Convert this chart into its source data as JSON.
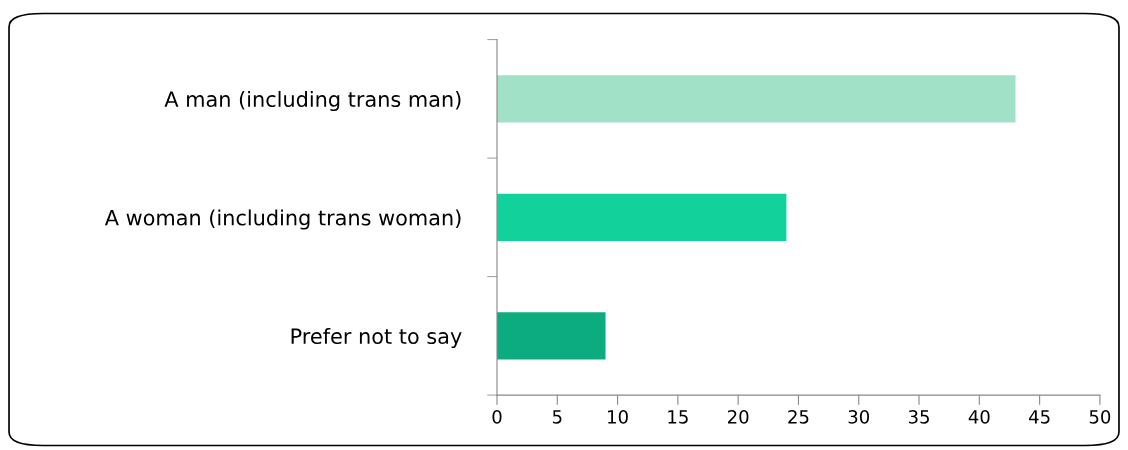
{
  "chart_data": {
    "type": "bar",
    "orientation": "horizontal",
    "categories": [
      "A man (including trans man)",
      "A woman (including trans woman)",
      "Prefer not to say"
    ],
    "values": [
      43,
      24,
      9
    ],
    "colors": [
      "#a1e1c8",
      "#12d19b",
      "#0dab80"
    ],
    "xlim": [
      0,
      50
    ],
    "xticks": [
      0,
      5,
      10,
      15,
      20,
      25,
      30,
      35,
      40,
      45,
      50
    ],
    "grid": false,
    "legend": false
  }
}
